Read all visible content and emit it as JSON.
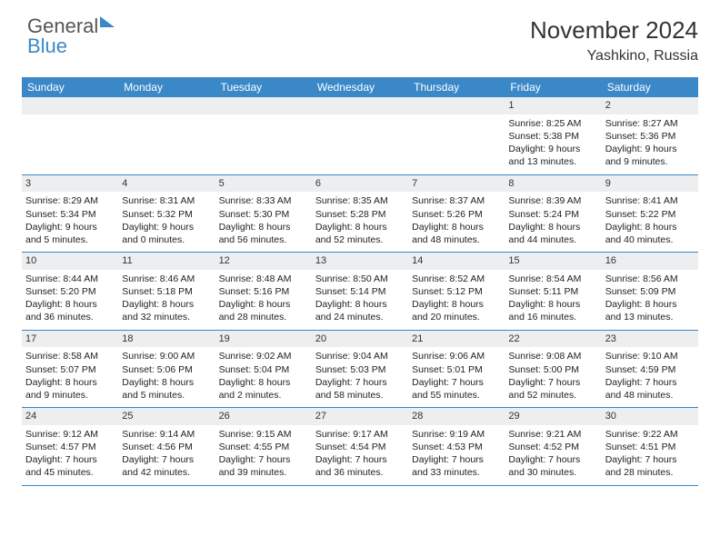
{
  "logo": {
    "text1": "General",
    "text2": "Blue"
  },
  "title": "November 2024",
  "subtitle": "Yashkino, Russia",
  "columns": [
    "Sunday",
    "Monday",
    "Tuesday",
    "Wednesday",
    "Thursday",
    "Friday",
    "Saturday"
  ],
  "colors": {
    "header_bg": "#3a88c8",
    "header_fg": "#ffffff",
    "daynum_bg": "#eceeef",
    "rule": "#3a88c8"
  },
  "weeks": [
    [
      {
        "n": "",
        "s": "",
        "t": "",
        "d": ""
      },
      {
        "n": "",
        "s": "",
        "t": "",
        "d": ""
      },
      {
        "n": "",
        "s": "",
        "t": "",
        "d": ""
      },
      {
        "n": "",
        "s": "",
        "t": "",
        "d": ""
      },
      {
        "n": "",
        "s": "",
        "t": "",
        "d": ""
      },
      {
        "n": "1",
        "s": "Sunrise: 8:25 AM",
        "t": "Sunset: 5:38 PM",
        "d": "Daylight: 9 hours and 13 minutes."
      },
      {
        "n": "2",
        "s": "Sunrise: 8:27 AM",
        "t": "Sunset: 5:36 PM",
        "d": "Daylight: 9 hours and 9 minutes."
      }
    ],
    [
      {
        "n": "3",
        "s": "Sunrise: 8:29 AM",
        "t": "Sunset: 5:34 PM",
        "d": "Daylight: 9 hours and 5 minutes."
      },
      {
        "n": "4",
        "s": "Sunrise: 8:31 AM",
        "t": "Sunset: 5:32 PM",
        "d": "Daylight: 9 hours and 0 minutes."
      },
      {
        "n": "5",
        "s": "Sunrise: 8:33 AM",
        "t": "Sunset: 5:30 PM",
        "d": "Daylight: 8 hours and 56 minutes."
      },
      {
        "n": "6",
        "s": "Sunrise: 8:35 AM",
        "t": "Sunset: 5:28 PM",
        "d": "Daylight: 8 hours and 52 minutes."
      },
      {
        "n": "7",
        "s": "Sunrise: 8:37 AM",
        "t": "Sunset: 5:26 PM",
        "d": "Daylight: 8 hours and 48 minutes."
      },
      {
        "n": "8",
        "s": "Sunrise: 8:39 AM",
        "t": "Sunset: 5:24 PM",
        "d": "Daylight: 8 hours and 44 minutes."
      },
      {
        "n": "9",
        "s": "Sunrise: 8:41 AM",
        "t": "Sunset: 5:22 PM",
        "d": "Daylight: 8 hours and 40 minutes."
      }
    ],
    [
      {
        "n": "10",
        "s": "Sunrise: 8:44 AM",
        "t": "Sunset: 5:20 PM",
        "d": "Daylight: 8 hours and 36 minutes."
      },
      {
        "n": "11",
        "s": "Sunrise: 8:46 AM",
        "t": "Sunset: 5:18 PM",
        "d": "Daylight: 8 hours and 32 minutes."
      },
      {
        "n": "12",
        "s": "Sunrise: 8:48 AM",
        "t": "Sunset: 5:16 PM",
        "d": "Daylight: 8 hours and 28 minutes."
      },
      {
        "n": "13",
        "s": "Sunrise: 8:50 AM",
        "t": "Sunset: 5:14 PM",
        "d": "Daylight: 8 hours and 24 minutes."
      },
      {
        "n": "14",
        "s": "Sunrise: 8:52 AM",
        "t": "Sunset: 5:12 PM",
        "d": "Daylight: 8 hours and 20 minutes."
      },
      {
        "n": "15",
        "s": "Sunrise: 8:54 AM",
        "t": "Sunset: 5:11 PM",
        "d": "Daylight: 8 hours and 16 minutes."
      },
      {
        "n": "16",
        "s": "Sunrise: 8:56 AM",
        "t": "Sunset: 5:09 PM",
        "d": "Daylight: 8 hours and 13 minutes."
      }
    ],
    [
      {
        "n": "17",
        "s": "Sunrise: 8:58 AM",
        "t": "Sunset: 5:07 PM",
        "d": "Daylight: 8 hours and 9 minutes."
      },
      {
        "n": "18",
        "s": "Sunrise: 9:00 AM",
        "t": "Sunset: 5:06 PM",
        "d": "Daylight: 8 hours and 5 minutes."
      },
      {
        "n": "19",
        "s": "Sunrise: 9:02 AM",
        "t": "Sunset: 5:04 PM",
        "d": "Daylight: 8 hours and 2 minutes."
      },
      {
        "n": "20",
        "s": "Sunrise: 9:04 AM",
        "t": "Sunset: 5:03 PM",
        "d": "Daylight: 7 hours and 58 minutes."
      },
      {
        "n": "21",
        "s": "Sunrise: 9:06 AM",
        "t": "Sunset: 5:01 PM",
        "d": "Daylight: 7 hours and 55 minutes."
      },
      {
        "n": "22",
        "s": "Sunrise: 9:08 AM",
        "t": "Sunset: 5:00 PM",
        "d": "Daylight: 7 hours and 52 minutes."
      },
      {
        "n": "23",
        "s": "Sunrise: 9:10 AM",
        "t": "Sunset: 4:59 PM",
        "d": "Daylight: 7 hours and 48 minutes."
      }
    ],
    [
      {
        "n": "24",
        "s": "Sunrise: 9:12 AM",
        "t": "Sunset: 4:57 PM",
        "d": "Daylight: 7 hours and 45 minutes."
      },
      {
        "n": "25",
        "s": "Sunrise: 9:14 AM",
        "t": "Sunset: 4:56 PM",
        "d": "Daylight: 7 hours and 42 minutes."
      },
      {
        "n": "26",
        "s": "Sunrise: 9:15 AM",
        "t": "Sunset: 4:55 PM",
        "d": "Daylight: 7 hours and 39 minutes."
      },
      {
        "n": "27",
        "s": "Sunrise: 9:17 AM",
        "t": "Sunset: 4:54 PM",
        "d": "Daylight: 7 hours and 36 minutes."
      },
      {
        "n": "28",
        "s": "Sunrise: 9:19 AM",
        "t": "Sunset: 4:53 PM",
        "d": "Daylight: 7 hours and 33 minutes."
      },
      {
        "n": "29",
        "s": "Sunrise: 9:21 AM",
        "t": "Sunset: 4:52 PM",
        "d": "Daylight: 7 hours and 30 minutes."
      },
      {
        "n": "30",
        "s": "Sunrise: 9:22 AM",
        "t": "Sunset: 4:51 PM",
        "d": "Daylight: 7 hours and 28 minutes."
      }
    ]
  ]
}
